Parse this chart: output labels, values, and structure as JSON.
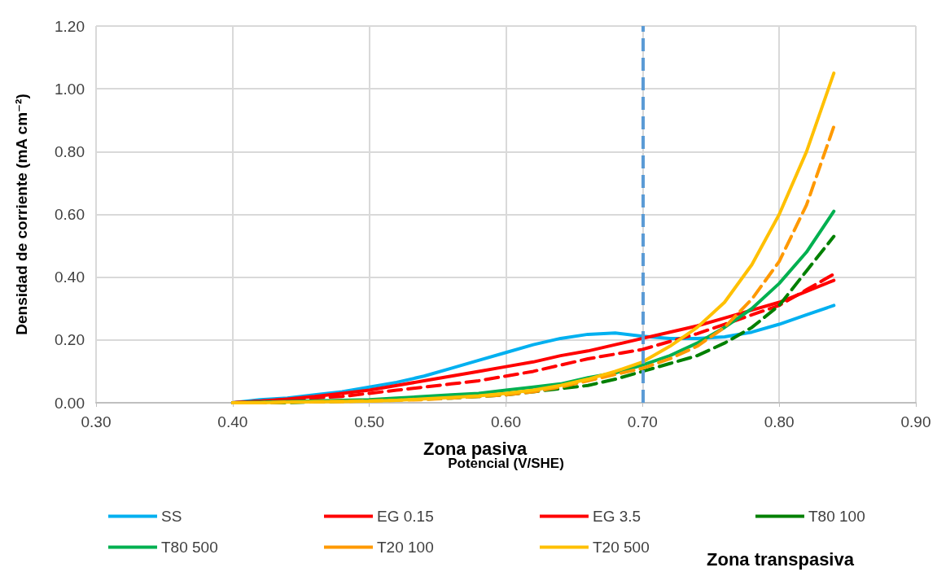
{
  "chart_data": {
    "type": "line",
    "xlabel": "Potencial (V/SHE)",
    "ylabel": "Densidad de corriente (mA cm⁻²)",
    "x": [
      0.4,
      0.42,
      0.44,
      0.46,
      0.48,
      0.5,
      0.52,
      0.54,
      0.56,
      0.58,
      0.6,
      0.62,
      0.64,
      0.66,
      0.68,
      0.7,
      0.72,
      0.74,
      0.76,
      0.78,
      0.8,
      0.82,
      0.84
    ],
    "series": [
      {
        "name": "SS",
        "color": "#00b0f0",
        "values": [
          0.0,
          0.01,
          0.015,
          0.025,
          0.035,
          0.05,
          0.065,
          0.085,
          0.11,
          0.135,
          0.16,
          0.185,
          0.205,
          0.218,
          0.222,
          0.212,
          0.205,
          0.205,
          0.21,
          0.225,
          0.25,
          0.28,
          0.31
        ]
      },
      {
        "name": "EG 0.15",
        "color": "#ff0000",
        "line_style": "dashed",
        "values": [
          0.0,
          0.005,
          0.01,
          0.015,
          0.02,
          0.03,
          0.04,
          0.05,
          0.06,
          0.07,
          0.085,
          0.1,
          0.12,
          0.14,
          0.155,
          0.17,
          0.195,
          0.22,
          0.25,
          0.28,
          0.31,
          0.36,
          0.41
        ]
      },
      {
        "name": "EG 3.5",
        "color": "#ff0000",
        "values": [
          0.0,
          0.005,
          0.012,
          0.02,
          0.03,
          0.04,
          0.055,
          0.07,
          0.085,
          0.1,
          0.115,
          0.13,
          0.15,
          0.165,
          0.185,
          0.205,
          0.225,
          0.245,
          0.27,
          0.295,
          0.32,
          0.355,
          0.39
        ]
      },
      {
        "name": "T80 100",
        "color": "#008000",
        "line_style": "dashed",
        "values": [
          0.0,
          0.0,
          0.0,
          0.003,
          0.005,
          0.007,
          0.01,
          0.012,
          0.015,
          0.02,
          0.025,
          0.035,
          0.045,
          0.055,
          0.075,
          0.1,
          0.125,
          0.15,
          0.19,
          0.24,
          0.31,
          0.42,
          0.53
        ]
      },
      {
        "name": "T80 500",
        "color": "#00b050",
        "values": [
          0.0,
          0.002,
          0.004,
          0.006,
          0.008,
          0.01,
          0.015,
          0.02,
          0.025,
          0.03,
          0.04,
          0.05,
          0.06,
          0.08,
          0.095,
          0.12,
          0.15,
          0.19,
          0.24,
          0.3,
          0.38,
          0.48,
          0.61
        ]
      },
      {
        "name": "T20 100",
        "color": "#ff9900",
        "line_style": "dashed",
        "values": [
          0.0,
          0.0,
          0.002,
          0.003,
          0.004,
          0.006,
          0.008,
          0.01,
          0.015,
          0.02,
          0.025,
          0.035,
          0.05,
          0.07,
          0.09,
          0.11,
          0.14,
          0.18,
          0.24,
          0.33,
          0.45,
          0.63,
          0.88
        ]
      },
      {
        "name": "T20 500",
        "color": "#ffc000",
        "values": [
          0.0,
          0.0,
          0.002,
          0.003,
          0.004,
          0.005,
          0.008,
          0.012,
          0.017,
          0.022,
          0.03,
          0.04,
          0.055,
          0.075,
          0.1,
          0.13,
          0.18,
          0.24,
          0.32,
          0.44,
          0.6,
          0.8,
          1.05
        ]
      }
    ],
    "xlim": [
      0.3,
      0.9
    ],
    "xticks": [
      {
        "value": 0.3,
        "label": "0.30"
      },
      {
        "value": 0.4,
        "label": "0.40"
      },
      {
        "value": 0.5,
        "label": "0.50"
      },
      {
        "value": 0.6,
        "label": "0.60"
      },
      {
        "value": 0.7,
        "label": "0.70"
      },
      {
        "value": 0.8,
        "label": "0.80"
      },
      {
        "value": 0.9,
        "label": "0.90"
      }
    ],
    "ylim": [
      0,
      1.2
    ],
    "yticks": [
      {
        "value": 0,
        "label": "0.00"
      },
      {
        "value": 0.2,
        "label": "0.20"
      },
      {
        "value": 0.4,
        "label": "0.40"
      },
      {
        "value": 0.6,
        "label": "0.60"
      },
      {
        "value": 0.8,
        "label": "0.80"
      },
      {
        "value": 1.0,
        "label": "1.00"
      },
      {
        "value": 1.2,
        "label": "1.20"
      }
    ],
    "ref_lines": [
      {
        "axis": "x",
        "value": 0.7,
        "color": "#5b9bd5",
        "line_style": "dashed"
      }
    ],
    "annotations": [
      "Zona pasiva",
      "Zona transpasiva"
    ],
    "grid": true,
    "legend": "bottom",
    "marker": "none"
  }
}
